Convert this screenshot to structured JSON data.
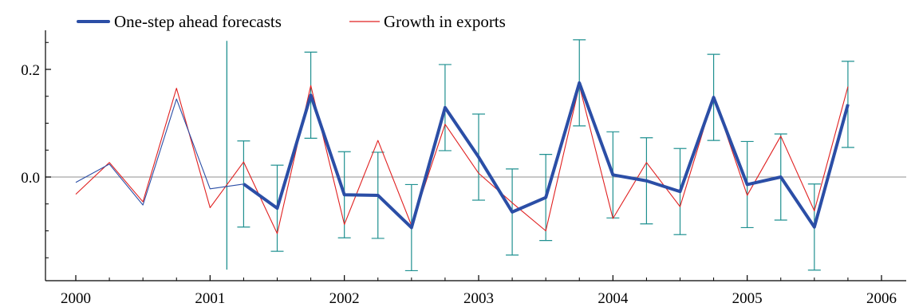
{
  "chart_data": {
    "type": "line",
    "title": "",
    "xlabel": "",
    "ylabel": "",
    "xlim": [
      2000,
      2006.2
    ],
    "ylim": [
      -0.2,
      0.28
    ],
    "x_ticks": [
      {
        "value": 2000,
        "label": "2000"
      },
      {
        "value": 2001,
        "label": "2001"
      },
      {
        "value": 2002,
        "label": "2002"
      },
      {
        "value": 2003,
        "label": "2003"
      },
      {
        "value": 2004,
        "label": "2004"
      },
      {
        "value": 2005,
        "label": "2005"
      },
      {
        "value": 2006,
        "label": "2006"
      }
    ],
    "y_ticks": [
      {
        "value": 0.0,
        "label": "0.0"
      },
      {
        "value": 0.2,
        "label": "0.2"
      }
    ],
    "reference_line_y": 0,
    "forecast_origin": {
      "x": 2001.125,
      "y_low": -0.172,
      "y_high": 0.253
    },
    "legend_position": "top-left",
    "series": [
      {
        "name": "One-step ahead forecasts",
        "color": "#2b4ea6",
        "role": "forecast",
        "in_sample": [
          {
            "x": 2000.0,
            "y": -0.01
          },
          {
            "x": 2000.25,
            "y": 0.024
          },
          {
            "x": 2000.5,
            "y": -0.052
          },
          {
            "x": 2000.75,
            "y": 0.145
          },
          {
            "x": 2001.0,
            "y": -0.022
          }
        ],
        "forecast": [
          {
            "x": 2001.25,
            "y": -0.013,
            "lo": -0.093,
            "hi": 0.067
          },
          {
            "x": 2001.5,
            "y": -0.058,
            "lo": -0.138,
            "hi": 0.022
          },
          {
            "x": 2001.75,
            "y": 0.152,
            "lo": 0.072,
            "hi": 0.232
          },
          {
            "x": 2002.0,
            "y": -0.033,
            "lo": -0.113,
            "hi": 0.047
          },
          {
            "x": 2002.25,
            "y": -0.034,
            "lo": -0.114,
            "hi": 0.046
          },
          {
            "x": 2002.5,
            "y": -0.094,
            "lo": -0.174,
            "hi": -0.014
          },
          {
            "x": 2002.75,
            "y": 0.129,
            "lo": 0.049,
            "hi": 0.209
          },
          {
            "x": 2003.0,
            "y": 0.037,
            "lo": -0.043,
            "hi": 0.117
          },
          {
            "x": 2003.25,
            "y": -0.065,
            "lo": -0.145,
            "hi": 0.015
          },
          {
            "x": 2003.5,
            "y": -0.038,
            "lo": -0.118,
            "hi": 0.042
          },
          {
            "x": 2003.75,
            "y": 0.175,
            "lo": 0.095,
            "hi": 0.255
          },
          {
            "x": 2004.0,
            "y": 0.004,
            "lo": -0.076,
            "hi": 0.084
          },
          {
            "x": 2004.25,
            "y": -0.007,
            "lo": -0.087,
            "hi": 0.073
          },
          {
            "x": 2004.5,
            "y": -0.027,
            "lo": -0.107,
            "hi": 0.053
          },
          {
            "x": 2004.75,
            "y": 0.148,
            "lo": 0.068,
            "hi": 0.228
          },
          {
            "x": 2005.0,
            "y": -0.014,
            "lo": -0.094,
            "hi": 0.066
          },
          {
            "x": 2005.25,
            "y": 0.0,
            "lo": -0.08,
            "hi": 0.08
          },
          {
            "x": 2005.5,
            "y": -0.093,
            "lo": -0.173,
            "hi": -0.013
          },
          {
            "x": 2005.75,
            "y": 0.135,
            "lo": 0.055,
            "hi": 0.215
          }
        ]
      },
      {
        "name": "Growth in exports",
        "color": "#e02020",
        "role": "actual",
        "points": [
          {
            "x": 2000.0,
            "y": -0.032
          },
          {
            "x": 2000.25,
            "y": 0.027
          },
          {
            "x": 2000.5,
            "y": -0.046
          },
          {
            "x": 2000.75,
            "y": 0.165
          },
          {
            "x": 2001.0,
            "y": -0.057
          },
          {
            "x": 2001.25,
            "y": 0.028
          },
          {
            "x": 2001.5,
            "y": -0.105
          },
          {
            "x": 2001.75,
            "y": 0.17
          },
          {
            "x": 2002.0,
            "y": -0.088
          },
          {
            "x": 2002.25,
            "y": 0.068
          },
          {
            "x": 2002.5,
            "y": -0.09
          },
          {
            "x": 2002.75,
            "y": 0.098
          },
          {
            "x": 2003.0,
            "y": 0.007
          },
          {
            "x": 2003.25,
            "y": -0.048
          },
          {
            "x": 2003.5,
            "y": -0.1
          },
          {
            "x": 2003.75,
            "y": 0.17
          },
          {
            "x": 2004.0,
            "y": -0.077
          },
          {
            "x": 2004.25,
            "y": 0.027
          },
          {
            "x": 2004.5,
            "y": -0.055
          },
          {
            "x": 2004.75,
            "y": 0.15
          },
          {
            "x": 2005.0,
            "y": -0.034
          },
          {
            "x": 2005.25,
            "y": 0.076
          },
          {
            "x": 2005.5,
            "y": -0.063
          },
          {
            "x": 2005.75,
            "y": 0.168
          }
        ]
      }
    ],
    "colors": {
      "forecast_line": "#2b4ea6",
      "actual_line": "#e02020",
      "error_bars": "#1f9090",
      "zero_line": "#a8a8a8",
      "axes": "#000000"
    }
  }
}
